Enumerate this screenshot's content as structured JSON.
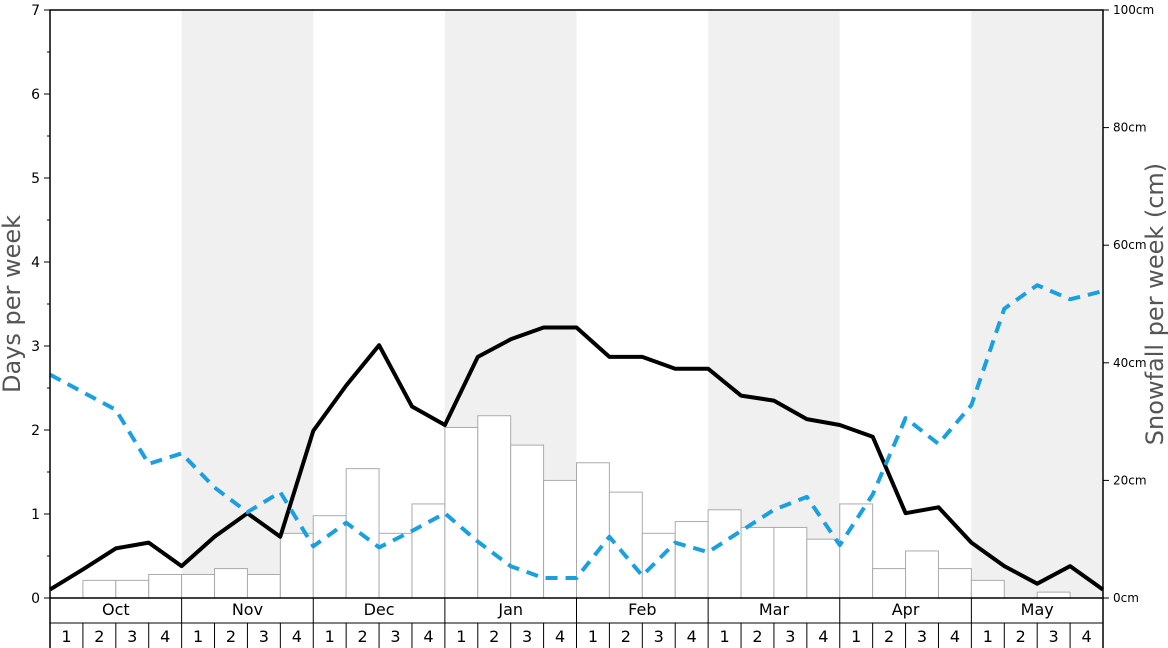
{
  "chart_data": {
    "type": "bar+line",
    "left_axis": {
      "label": "Days per week",
      "ylim": [
        0,
        7
      ],
      "ticks": [
        "0",
        "1",
        "2",
        "3",
        "4",
        "5",
        "6",
        "7"
      ]
    },
    "right_axis": {
      "label": "Snowfall per week (cm)",
      "ylim": [
        0,
        100
      ],
      "ticks": [
        "0cm",
        "20cm",
        "40cm",
        "60cm",
        "80cm",
        "100cm"
      ]
    },
    "months": [
      "Oct",
      "Nov",
      "Dec",
      "Jan",
      "Feb",
      "Mar",
      "Apr",
      "May"
    ],
    "weeks": [
      "1",
      "2",
      "3",
      "4"
    ],
    "shaded_months": [
      "Nov",
      "Jan",
      "Mar",
      "May"
    ],
    "colors": {
      "shade": "#f0f0f0",
      "bars_fill": "#ffffff",
      "bars_stroke": "#aaaaaa",
      "solid_line": "#000000",
      "dashed_line": "#1aa0e0"
    },
    "series": [
      {
        "kind": "bar",
        "axis": "left",
        "values": [
          0.0,
          0.21,
          0.21,
          0.28,
          0.28,
          0.35,
          0.28,
          0.77,
          0.98,
          1.54,
          0.77,
          1.12,
          2.03,
          2.17,
          1.82,
          1.4,
          1.61,
          1.26,
          0.77,
          0.91,
          1.05,
          0.84,
          0.84,
          0.7,
          1.12,
          0.35,
          0.56,
          0.35,
          0.21,
          0.0,
          0.07,
          0.0
        ]
      },
      {
        "kind": "line",
        "style": "solid",
        "axis": "left",
        "values": [
          0.1,
          0.34,
          0.59,
          0.66,
          0.38,
          0.73,
          1.01,
          0.73,
          1.99,
          2.53,
          3.01,
          2.28,
          2.06,
          2.87,
          3.08,
          3.22,
          3.22,
          2.87,
          2.87,
          2.73,
          2.73,
          2.41,
          2.35,
          2.13,
          2.06,
          1.92,
          1.01,
          1.08,
          0.66,
          0.38,
          0.17,
          0.38,
          0.1
        ]
      },
      {
        "kind": "line",
        "style": "dashed",
        "axis": "right",
        "values": [
          38,
          35,
          32,
          22.8,
          24.6,
          18.8,
          14.6,
          18.0,
          8.8,
          12.8,
          8.6,
          11.4,
          14.4,
          9.6,
          5.4,
          3.4,
          3.4,
          10.4,
          3.8,
          9.4,
          7.8,
          11.4,
          15.0,
          17.2,
          9.0,
          17.6,
          30.6,
          26.2,
          32.8,
          49.2,
          53.2,
          50.8,
          52.2
        ]
      }
    ]
  }
}
